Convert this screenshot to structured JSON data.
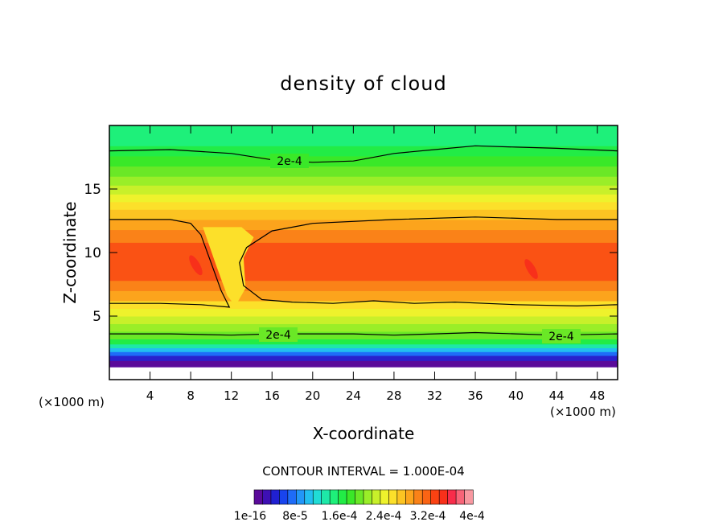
{
  "chart_data": {
    "type": "heatmap",
    "title": "density of cloud",
    "xlabel": "X-coordinate",
    "ylabel": "Z-coordinate",
    "x_unit_left": "(×1000 m)",
    "x_unit_right": "(×1000 m)",
    "xlim": [
      0,
      50
    ],
    "ylim": [
      0,
      20
    ],
    "x_ticks": [
      "4",
      "8",
      "12",
      "16",
      "20",
      "24",
      "28",
      "32",
      "36",
      "40",
      "44",
      "48"
    ],
    "y_ticks": [
      "5",
      "10",
      "15"
    ],
    "contour_interval_text": "CONTOUR INTERVAL = 1.000E-04",
    "contour_labels": [
      "2e-4",
      "2e-4",
      "2e-4"
    ],
    "colorbar": {
      "labels": [
        "1e-16",
        "8e-5",
        "1.6e-4",
        "2.4e-4",
        "3.2e-4",
        "4e-4"
      ],
      "colors": [
        "#5a0a9a",
        "#3e10b4",
        "#2020d2",
        "#1844ee",
        "#1e6cf8",
        "#2296f8",
        "#22bef0",
        "#20dcd6",
        "#1ee8a8",
        "#1ef07a",
        "#22ec46",
        "#3ae828",
        "#6ae826",
        "#9aee28",
        "#c8f02a",
        "#eef22c",
        "#fce02a",
        "#fcc422",
        "#fca41c",
        "#fa8218",
        "#fa6414",
        "#fa4212",
        "#f8301a",
        "#f82c4a",
        "#f86478",
        "#f898a0"
      ]
    },
    "bands": [
      {
        "z": [
          1.0,
          1.5
        ],
        "color": "#5a0a9a"
      },
      {
        "z": [
          1.5,
          1.9
        ],
        "color": "#2a20cc"
      },
      {
        "z": [
          1.9,
          2.2
        ],
        "color": "#1e6cf8"
      },
      {
        "z": [
          2.2,
          2.5
        ],
        "color": "#22bef0"
      },
      {
        "z": [
          2.5,
          2.8
        ],
        "color": "#1ee8a8"
      },
      {
        "z": [
          2.8,
          3.2
        ],
        "color": "#22ec46"
      },
      {
        "z": [
          3.2,
          3.8
        ],
        "color": "#6ae826"
      },
      {
        "z": [
          3.8,
          4.4
        ],
        "color": "#9aee28"
      },
      {
        "z": [
          4.4,
          5.0
        ],
        "color": "#c8f02a"
      },
      {
        "z": [
          5.0,
          5.6
        ],
        "color": "#eef22c"
      },
      {
        "z": [
          5.6,
          6.2
        ],
        "color": "#fce02a"
      },
      {
        "z": [
          6.2,
          7.0
        ],
        "color": "#fca41c"
      },
      {
        "z": [
          7.0,
          7.8
        ],
        "color": "#fa8218"
      },
      {
        "z": [
          7.8,
          10.8
        ],
        "color": "#fa5214"
      },
      {
        "z": [
          10.8,
          11.8
        ],
        "color": "#fa8218"
      },
      {
        "z": [
          11.8,
          12.6
        ],
        "color": "#fca41c"
      },
      {
        "z": [
          12.6,
          13.4
        ],
        "color": "#fcc422"
      },
      {
        "z": [
          13.4,
          14.0
        ],
        "color": "#fce02a"
      },
      {
        "z": [
          14.0,
          14.6
        ],
        "color": "#eef22c"
      },
      {
        "z": [
          14.6,
          15.3
        ],
        "color": "#c8f02a"
      },
      {
        "z": [
          15.3,
          16.0
        ],
        "color": "#9aee28"
      },
      {
        "z": [
          16.0,
          16.8
        ],
        "color": "#6ae826"
      },
      {
        "z": [
          16.8,
          17.6
        ],
        "color": "#3ae828"
      },
      {
        "z": [
          17.6,
          18.4
        ],
        "color": "#22ec46"
      },
      {
        "z": [
          18.4,
          20.0
        ],
        "color": "#1ef07a"
      }
    ],
    "contours": [
      {
        "name": "upper",
        "points": [
          [
            0,
            18.0
          ],
          [
            6,
            18.1
          ],
          [
            12,
            17.8
          ],
          [
            16,
            17.3
          ],
          [
            20,
            17.1
          ],
          [
            24,
            17.2
          ],
          [
            28,
            17.8
          ],
          [
            32,
            18.1
          ],
          [
            36,
            18.4
          ],
          [
            40,
            18.3
          ],
          [
            44,
            18.2
          ],
          [
            50,
            18.0
          ]
        ]
      },
      {
        "name": "lower",
        "points": [
          [
            0,
            3.6
          ],
          [
            6,
            3.6
          ],
          [
            12,
            3.5
          ],
          [
            16,
            3.6
          ],
          [
            20,
            3.6
          ],
          [
            24,
            3.6
          ],
          [
            28,
            3.5
          ],
          [
            32,
            3.6
          ],
          [
            36,
            3.7
          ],
          [
            40,
            3.6
          ],
          [
            44,
            3.5
          ],
          [
            50,
            3.6
          ]
        ]
      },
      {
        "name": "cloud-left",
        "points": [
          [
            0,
            12.6
          ],
          [
            6,
            12.6
          ],
          [
            8,
            12.3
          ],
          [
            9,
            11.4
          ],
          [
            10,
            9.2
          ],
          [
            11,
            7.0
          ],
          [
            11.8,
            5.7
          ],
          [
            9,
            5.9
          ],
          [
            5,
            6.0
          ],
          [
            0,
            6.0
          ]
        ]
      },
      {
        "name": "cloud-right",
        "points": [
          [
            50,
            12.6
          ],
          [
            44,
            12.6
          ],
          [
            36,
            12.8
          ],
          [
            28,
            12.6
          ],
          [
            20,
            12.3
          ],
          [
            16,
            11.7
          ],
          [
            13.5,
            10.4
          ],
          [
            12.8,
            9.2
          ],
          [
            13.2,
            7.4
          ],
          [
            15,
            6.3
          ],
          [
            18,
            6.1
          ],
          [
            22,
            6.0
          ],
          [
            26,
            6.2
          ],
          [
            30,
            6.0
          ],
          [
            34,
            6.1
          ],
          [
            40,
            5.9
          ],
          [
            46,
            5.8
          ],
          [
            50,
            5.9
          ]
        ]
      }
    ]
  }
}
